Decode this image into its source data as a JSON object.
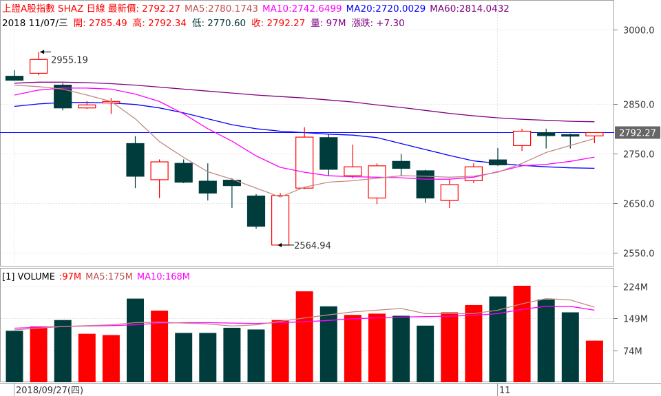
{
  "header": {
    "line1": [
      {
        "text": "上證A股指數 SHAZ 日線 最新價: 2792.27",
        "color": "#ff0000"
      },
      {
        "text": "MA5:2780.1743",
        "color": "#c0504d"
      },
      {
        "text": "MA10:2742.6499",
        "color": "#ff00ff"
      },
      {
        "text": "MA20:2720.0029",
        "color": "#0000ff"
      },
      {
        "text": "MA60:2814.0432",
        "color": "#800080"
      }
    ],
    "line2": [
      {
        "text": "2018 11/07/三",
        "color": "#000000"
      },
      {
        "text": "開: 2785.49",
        "color": "#ff0000"
      },
      {
        "text": "高: 2792.34",
        "color": "#ff0000"
      },
      {
        "text": "低: 2770.60",
        "color": "#003333"
      },
      {
        "text": "收: 2792.27",
        "color": "#ff0000"
      },
      {
        "text": "量: 97M",
        "color": "#800080"
      },
      {
        "text": "漲跌: +7.30",
        "color": "#800080"
      }
    ]
  },
  "price_tag": "2792.27",
  "volume_header": [
    {
      "text": "[1] VOLUME",
      "color": "#000000"
    },
    {
      "text": ":97M",
      "color": "#ff0000"
    },
    {
      "text": "MA5:175M",
      "color": "#c0504d"
    },
    {
      "text": "MA10:168M",
      "color": "#ff00ff"
    }
  ],
  "x_labels": [
    "2018/09/27(四)",
    "11"
  ],
  "annotations": {
    "high": "2955.19",
    "low": "2564.94"
  },
  "colors": {
    "up": "#ff0000",
    "down": "#003c3c",
    "ma5": "#c08a85",
    "ma10": "#ff00ff",
    "ma20": "#0000ff",
    "ma60": "#800080",
    "last_price_line": "#0000ff",
    "price_tag_bg": "#666666"
  },
  "chart_data": {
    "type": "candlestick",
    "price_axis": {
      "ticks": [
        3000.0,
        2850.0,
        2750.0,
        2650.0,
        2550.0
      ],
      "ylim": [
        2523,
        3060
      ]
    },
    "volume_axis": {
      "ticks": [
        "224M",
        "149M",
        "74M"
      ],
      "tick_values": [
        224,
        149,
        74
      ],
      "ylim": [
        0,
        265
      ]
    },
    "candles": [
      {
        "o": 2906,
        "h": 2918,
        "l": 2897,
        "c": 2898,
        "v": 120
      },
      {
        "o": 2912,
        "h": 2955.19,
        "l": 2908,
        "c": 2940,
        "v": 130
      },
      {
        "o": 2888,
        "h": 2892,
        "l": 2837,
        "c": 2842,
        "v": 145
      },
      {
        "o": 2842,
        "h": 2856,
        "l": 2840,
        "c": 2848,
        "v": 113
      },
      {
        "o": 2852,
        "h": 2862,
        "l": 2830,
        "c": 2855,
        "v": 110
      },
      {
        "o": 2770,
        "h": 2785,
        "l": 2680,
        "c": 2704,
        "v": 195
      },
      {
        "o": 2697,
        "h": 2738,
        "l": 2660,
        "c": 2733,
        "v": 167
      },
      {
        "o": 2730,
        "h": 2738,
        "l": 2690,
        "c": 2692,
        "v": 115
      },
      {
        "o": 2694,
        "h": 2730,
        "l": 2655,
        "c": 2670,
        "v": 115
      },
      {
        "o": 2696,
        "h": 2700,
        "l": 2640,
        "c": 2685,
        "v": 127
      },
      {
        "o": 2664,
        "h": 2668,
        "l": 2598,
        "c": 2603,
        "v": 123
      },
      {
        "o": 2565,
        "h": 2670,
        "l": 2564.94,
        "c": 2665,
        "v": 145
      },
      {
        "o": 2680,
        "h": 2803,
        "l": 2678,
        "c": 2783,
        "v": 212
      },
      {
        "o": 2782,
        "h": 2788,
        "l": 2705,
        "c": 2718,
        "v": 177
      },
      {
        "o": 2705,
        "h": 2768,
        "l": 2700,
        "c": 2723,
        "v": 157
      },
      {
        "o": 2660,
        "h": 2730,
        "l": 2648,
        "c": 2725,
        "v": 160
      },
      {
        "o": 2734,
        "h": 2749,
        "l": 2705,
        "c": 2720,
        "v": 155
      },
      {
        "o": 2715,
        "h": 2717,
        "l": 2650,
        "c": 2660,
        "v": 132
      },
      {
        "o": 2655,
        "h": 2699,
        "l": 2640,
        "c": 2687,
        "v": 163
      },
      {
        "o": 2695,
        "h": 2730,
        "l": 2690,
        "c": 2723,
        "v": 180
      },
      {
        "o": 2737,
        "h": 2761,
        "l": 2725,
        "c": 2727,
        "v": 200
      },
      {
        "o": 2766,
        "h": 2800,
        "l": 2755,
        "c": 2795,
        "v": 225
      },
      {
        "o": 2792,
        "h": 2800,
        "l": 2760,
        "c": 2786,
        "v": 193
      },
      {
        "o": 2788,
        "h": 2790,
        "l": 2760,
        "c": 2785,
        "v": 163
      },
      {
        "o": 2785.49,
        "h": 2792.34,
        "l": 2770.6,
        "c": 2792.27,
        "v": 97
      }
    ],
    "ma5": [
      2888,
      2885,
      2880,
      2868,
      2855,
      2820,
      2774,
      2742,
      2713,
      2698,
      2680,
      2662,
      2682,
      2692,
      2695,
      2700,
      2705,
      2704,
      2702,
      2704,
      2712,
      2730,
      2752,
      2766,
      2780.17
    ],
    "ma10": [
      2868,
      2878,
      2882,
      2882,
      2880,
      2870,
      2855,
      2830,
      2800,
      2775,
      2745,
      2722,
      2712,
      2705,
      2703,
      2702,
      2701,
      2698,
      2698,
      2702,
      2713,
      2725,
      2728,
      2734,
      2742.65
    ],
    "ma20": [
      2845,
      2850,
      2853,
      2853,
      2852,
      2849,
      2842,
      2832,
      2820,
      2808,
      2800,
      2795,
      2792,
      2789,
      2787,
      2782,
      2770,
      2758,
      2746,
      2735,
      2730,
      2726,
      2723,
      2721,
      2720.0
    ],
    "ma60": [
      2892,
      2894,
      2894,
      2893,
      2891,
      2888,
      2884,
      2880,
      2876,
      2872,
      2868,
      2865,
      2862,
      2858,
      2854,
      2848,
      2843,
      2837,
      2831,
      2826,
      2822,
      2819,
      2817,
      2815,
      2814.04
    ],
    "vol_ma5": [
      122,
      126,
      130,
      132,
      134,
      139,
      140,
      138,
      136,
      131,
      134,
      142,
      150,
      157,
      164,
      168,
      172,
      160,
      160,
      160,
      168,
      183,
      195,
      192,
      175
    ],
    "vol_ma10": [
      126,
      128,
      130,
      131,
      132,
      134,
      138,
      139,
      139,
      138,
      137,
      139,
      141,
      144,
      148,
      150,
      152,
      153,
      154,
      156,
      160,
      170,
      177,
      177,
      168
    ]
  }
}
